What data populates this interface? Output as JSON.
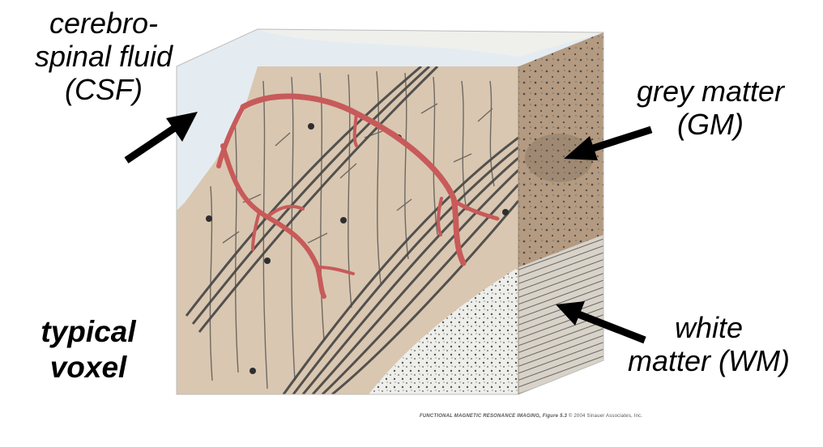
{
  "labels": {
    "csf": [
      "cerebro-",
      "spinal fluid",
      "(CSF)"
    ],
    "grey_matter": [
      "grey matter",
      "(GM)"
    ],
    "white_matter": [
      "white",
      "matter (WM)"
    ],
    "voxel": [
      "typical",
      "voxel"
    ]
  },
  "caption": {
    "title": "FUNCTIONAL MAGNETIC RESONANCE IMAGING, Figure 5.3",
    "credit": "© 2004 Sinauer Associates, Inc."
  },
  "colors": {
    "csf_fill": "#e4ecf2",
    "cortex_fill": "#d9c7b1",
    "side_face": "#b39a80",
    "white_matter_fill": "#eeeeeb",
    "vessel": "#c85a5a",
    "fiber": "#3c3c3c",
    "arrow": "#000000"
  }
}
